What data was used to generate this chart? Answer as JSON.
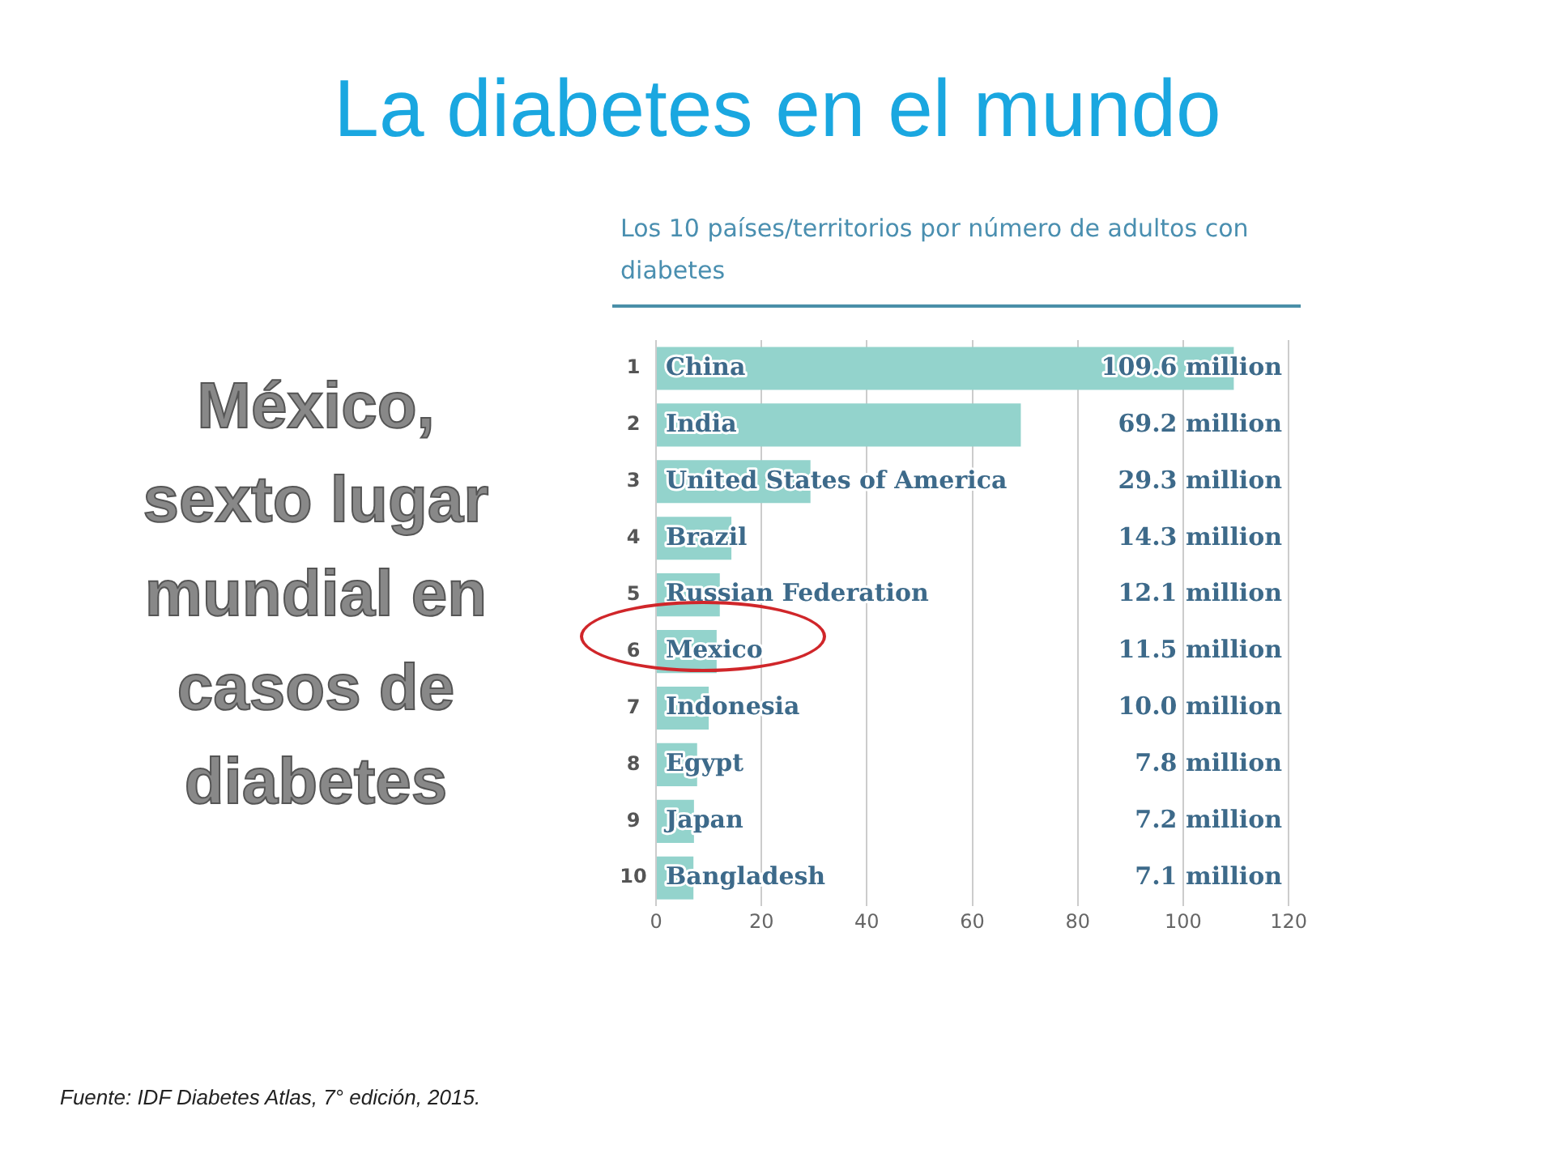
{
  "chart_data": {
    "type": "bar",
    "orientation": "horizontal",
    "title": "La diabetes en el mundo",
    "subtitle": "Los 10 países/territorios  por número de adultos con diabetes",
    "categories": [
      "China",
      "India",
      "United States of America",
      "Brazil",
      "Russian Federation",
      "Mexico",
      "Indonesia",
      "Egypt",
      "Japan",
      "Bangladesh"
    ],
    "values": [
      109.6,
      69.2,
      29.3,
      14.3,
      12.1,
      11.5,
      10.0,
      7.8,
      7.2,
      7.1
    ],
    "value_labels": [
      "109.6 million",
      "69.2 million",
      "29.3 million",
      "14.3 million",
      "12.1 million",
      "11.5 million",
      "10.0 million",
      "7.8 million",
      "7.2 million",
      "7.1 million"
    ],
    "color": "#93d3cc",
    "xlim": [
      0,
      120
    ],
    "xticks": [
      0,
      20,
      40,
      60,
      80,
      100,
      120
    ],
    "grid": "x",
    "legend": false,
    "annotations": [
      "México, sexto lugar mundial en casos de diabetes",
      "Fuente: IDF Diabetes Atlas, 7° edición, 2015.",
      "1",
      "2",
      "3",
      "4",
      "5",
      "6",
      "7",
      "8",
      "9",
      "10"
    ]
  }
}
